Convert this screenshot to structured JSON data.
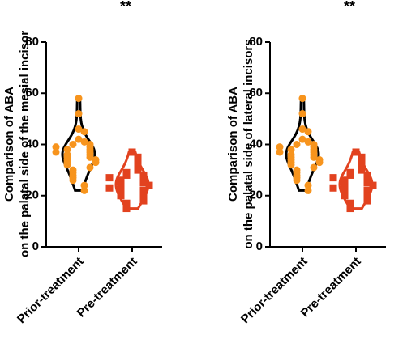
{
  "chart_data": [
    {
      "type": "violin",
      "title": "**",
      "y_label": [
        "Comparison of ABA",
        "on the palatal side of the mesial incisor"
      ],
      "categories": [
        "Prior-treatment",
        "Pre-treatment"
      ],
      "series": [
        {
          "name": "Prior-treatment",
          "color": "#f7941d",
          "violin_color": "#000000",
          "values": [
            58,
            52,
            46,
            45,
            42,
            41,
            40,
            40,
            39,
            38,
            38,
            37,
            36,
            36,
            35,
            35,
            34,
            34,
            33,
            33,
            32,
            31,
            30,
            29,
            28,
            27,
            26,
            24,
            22,
            37,
            39
          ]
        },
        {
          "name": "Pre-treatment",
          "color": "#e2421f",
          "violin_color": "#e2421f",
          "values": [
            37,
            35,
            33,
            31,
            30,
            29,
            28,
            28,
            27,
            26,
            26,
            25,
            25,
            24,
            24,
            23,
            22,
            22,
            21,
            20,
            20,
            19,
            18,
            17,
            16,
            15,
            27,
            23
          ]
        }
      ],
      "ylim": [
        0,
        80
      ],
      "yticks": [
        0,
        20,
        40,
        60,
        80
      ]
    },
    {
      "type": "violin",
      "title": "**",
      "y_label": [
        "Comparison of ABA",
        "on the palatal side of lateral incisors"
      ],
      "categories": [
        "Prior-treatment",
        "Pre-treatment"
      ],
      "series": [
        {
          "name": "Prior-treatment",
          "color": "#f7941d",
          "violin_color": "#000000",
          "values": [
            58,
            52,
            46,
            45,
            42,
            41,
            40,
            40,
            39,
            38,
            38,
            37,
            36,
            36,
            35,
            35,
            34,
            34,
            33,
            33,
            32,
            31,
            30,
            29,
            28,
            27,
            26,
            24,
            22,
            37,
            39
          ]
        },
        {
          "name": "Pre-treatment",
          "color": "#e2421f",
          "violin_color": "#e2421f",
          "values": [
            37,
            35,
            33,
            31,
            30,
            29,
            28,
            28,
            27,
            26,
            26,
            25,
            25,
            24,
            24,
            23,
            22,
            22,
            21,
            20,
            20,
            19,
            18,
            17,
            16,
            15,
            27,
            23
          ]
        }
      ],
      "ylim": [
        0,
        80
      ],
      "yticks": [
        0,
        20,
        40,
        60,
        80
      ]
    }
  ]
}
